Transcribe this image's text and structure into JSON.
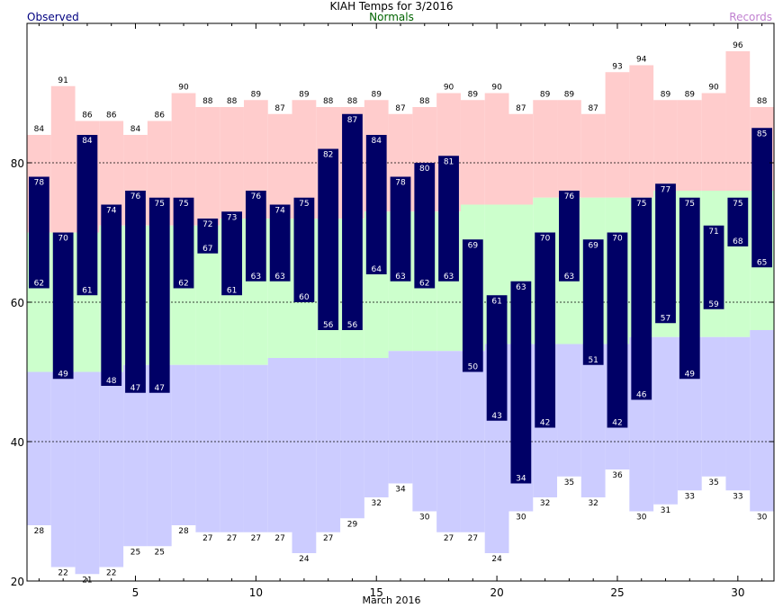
{
  "chart_data": {
    "type": "bar",
    "title": "KIAH Temps for 3/2016",
    "xlabel": "March 2016",
    "ylabel": "",
    "xlim": [
      0.5,
      31.5
    ],
    "ylim": [
      20,
      100
    ],
    "xticks": [
      5,
      10,
      15,
      20,
      25,
      30
    ],
    "yticks": [
      20,
      40,
      60,
      80
    ],
    "grid_y": [
      40,
      60,
      80
    ],
    "legend": [
      {
        "name": "Observed",
        "color": "#000080",
        "position": "top-left"
      },
      {
        "name": "Normals",
        "color": "#006400",
        "position": "top-center"
      },
      {
        "name": "Records",
        "color": "#C080D0",
        "position": "top-right"
      }
    ],
    "days": [
      1,
      2,
      3,
      4,
      5,
      6,
      7,
      8,
      9,
      10,
      11,
      12,
      13,
      14,
      15,
      16,
      17,
      18,
      19,
      20,
      21,
      22,
      23,
      24,
      25,
      26,
      27,
      28,
      29,
      30,
      31
    ],
    "series": [
      {
        "name": "Observed High",
        "values": [
          78,
          70,
          84,
          74,
          76,
          75,
          75,
          72,
          73,
          76,
          74,
          75,
          82,
          87,
          84,
          78,
          80,
          81,
          69,
          61,
          63,
          70,
          76,
          69,
          70,
          75,
          77,
          75,
          71,
          75,
          85
        ]
      },
      {
        "name": "Observed Low",
        "values": [
          62,
          49,
          61,
          48,
          47,
          47,
          62,
          67,
          61,
          63,
          63,
          60,
          56,
          56,
          64,
          63,
          62,
          63,
          50,
          43,
          34,
          42,
          63,
          51,
          42,
          46,
          57,
          49,
          59,
          68,
          65
        ]
      },
      {
        "name": "Record High",
        "values": [
          84,
          91,
          86,
          86,
          84,
          86,
          90,
          88,
          88,
          89,
          87,
          89,
          88,
          88,
          89,
          87,
          88,
          90,
          89,
          90,
          87,
          89,
          89,
          87,
          93,
          94,
          89,
          89,
          90,
          96,
          88
        ]
      },
      {
        "name": "Record Low",
        "values": [
          28,
          22,
          21,
          22,
          25,
          25,
          28,
          27,
          27,
          27,
          27,
          24,
          27,
          29,
          32,
          34,
          30,
          27,
          27,
          24,
          30,
          32,
          35,
          32,
          36,
          30,
          31,
          33,
          35,
          33,
          30
        ]
      },
      {
        "name": "Normal High",
        "values": [
          70,
          70,
          70,
          71,
          71,
          71,
          71,
          71,
          72,
          72,
          72,
          72,
          72,
          72,
          73,
          73,
          73,
          73,
          74,
          74,
          74,
          75,
          75,
          75,
          75,
          75,
          76,
          76,
          76,
          76,
          76
        ]
      },
      {
        "name": "Normal Low",
        "values": [
          50,
          50,
          50,
          50,
          51,
          51,
          51,
          51,
          51,
          51,
          52,
          52,
          52,
          52,
          52,
          53,
          53,
          53,
          53,
          54,
          54,
          54,
          54,
          54,
          54,
          55,
          55,
          55,
          55,
          55,
          56
        ]
      }
    ],
    "colors": {
      "observed": "#000066",
      "observed_label": "#ffffff",
      "record_band": "#FFCCCC",
      "normal_band": "#CCFFCC",
      "below_normal_band": "#CCCCFF",
      "grid": "#000000"
    }
  }
}
